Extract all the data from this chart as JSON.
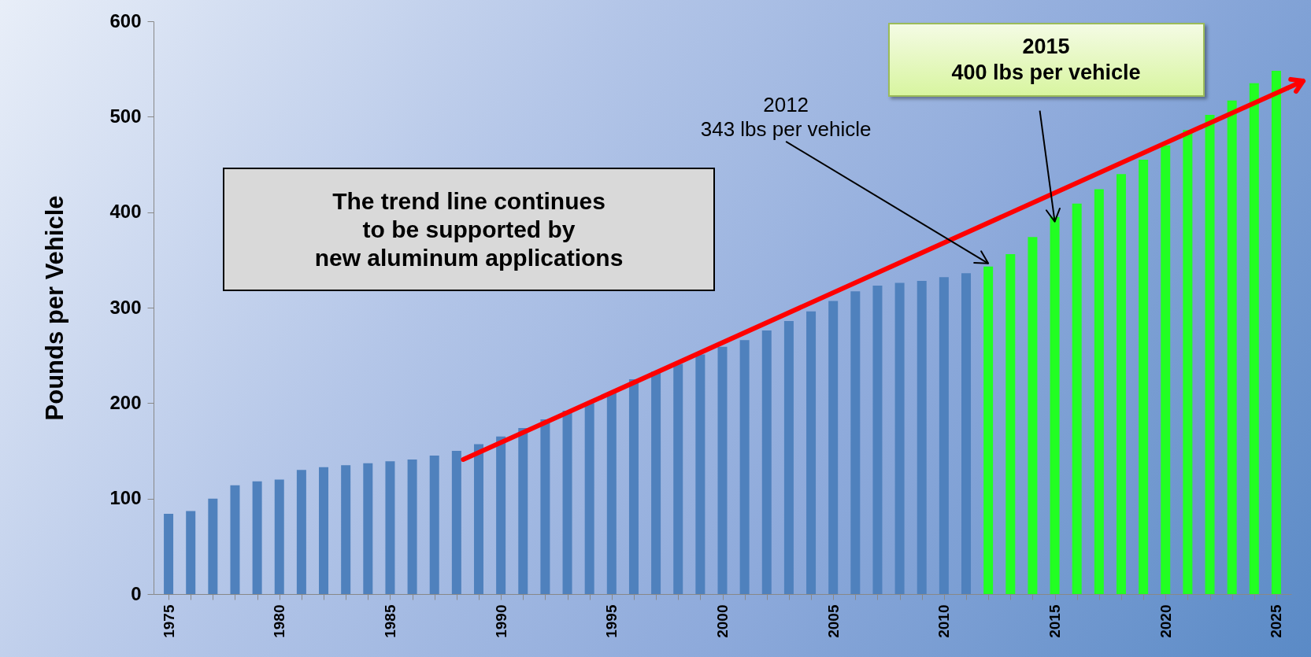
{
  "chart_data": {
    "type": "bar",
    "ylabel": "Pounds per Vehicle",
    "xlim": [
      1974.5,
      2025.5
    ],
    "xticks": [
      1975,
      {
        "value": 1976,
        "label": null
      },
      {
        "value": 1977,
        "label": null
      },
      {
        "value": 1978,
        "label": null
      },
      {
        "value": 1979,
        "label": null
      },
      1980,
      {
        "value": 1981,
        "label": null
      },
      {
        "value": 1982,
        "label": null
      },
      {
        "value": 1983,
        "label": null
      },
      {
        "value": 1984,
        "label": null
      },
      1985,
      {
        "value": 1986,
        "label": null
      },
      {
        "value": 1987,
        "label": null
      },
      {
        "value": 1988,
        "label": null
      },
      {
        "value": 1989,
        "label": null
      },
      1990,
      {
        "value": 1991,
        "label": null
      },
      {
        "value": 1992,
        "label": null
      },
      {
        "value": 1993,
        "label": null
      },
      {
        "value": 1994,
        "label": null
      },
      1995,
      {
        "value": 1996,
        "label": null
      },
      {
        "value": 1997,
        "label": null
      },
      {
        "value": 1998,
        "label": null
      },
      {
        "value": 1999,
        "label": null
      },
      2000,
      {
        "value": 2001,
        "label": null
      },
      {
        "value": 2002,
        "label": null
      },
      {
        "value": 2003,
        "label": null
      },
      {
        "value": 2004,
        "label": null
      },
      2005,
      {
        "value": 2006,
        "label": null
      },
      {
        "value": 2007,
        "label": null
      },
      {
        "value": 2008,
        "label": null
      },
      {
        "value": 2009,
        "label": null
      },
      2010,
      {
        "value": 2011,
        "label": null
      },
      {
        "value": 2012,
        "label": null
      },
      {
        "value": 2013,
        "label": null
      },
      {
        "value": 2014,
        "label": null
      },
      2015,
      {
        "value": 2016,
        "label": null
      },
      {
        "value": 2017,
        "label": null
      },
      {
        "value": 2018,
        "label": null
      },
      {
        "value": 2019,
        "label": null
      },
      2020,
      {
        "value": 2021,
        "label": null
      },
      {
        "value": 2022,
        "label": null
      },
      {
        "value": 2023,
        "label": null
      },
      {
        "value": 2024,
        "label": null
      },
      2025
    ],
    "ylim": [
      0,
      600
    ],
    "yticks": [
      0,
      100,
      200,
      300,
      400,
      500,
      600
    ],
    "series": [
      {
        "color": "#4f81bd",
        "x": [
          1975,
          1976,
          1977,
          1978,
          1979,
          1980,
          1981,
          1982,
          1983,
          1984,
          1985,
          1986,
          1987,
          1988,
          1989,
          1990,
          1991,
          1992,
          1993,
          1994,
          1995,
          1996,
          1997,
          1998,
          1999,
          2000,
          2001,
          2002,
          2003,
          2004,
          2005,
          2006,
          2007,
          2008,
          2009,
          2010,
          2011
        ],
        "values": [
          84,
          87,
          100,
          114,
          118,
          120,
          130,
          133,
          135,
          137,
          139,
          141,
          145,
          150,
          157,
          165,
          174,
          183,
          192,
          200,
          211,
          225,
          233,
          241,
          251,
          259,
          266,
          276,
          286,
          296,
          307,
          317,
          323,
          326,
          328,
          332,
          336
        ]
      },
      {
        "color": "#22ff22",
        "x": [
          2012,
          2013,
          2014,
          2015,
          2016,
          2017,
          2018,
          2019,
          2020,
          2021,
          2022,
          2023,
          2024,
          2025
        ],
        "values": [
          343,
          356,
          374,
          395,
          409,
          424,
          440,
          455,
          470,
          486,
          502,
          517,
          535,
          548
        ]
      },
      {
        "type": "line",
        "color": "#ff0000",
        "x": [
          1988.3,
          2025.5
        ],
        "values": [
          141,
          530
        ]
      }
    ],
    "annotations": [
      "The trend line continues\nto be supported by\nnew aluminum applications",
      {
        "text": "2012\n343 lbs per vehicle",
        "x": 2012,
        "y": 343
      },
      {
        "text": "2015\n400 lbs per vehicle",
        "x": 2015,
        "y": 395
      }
    ]
  }
}
